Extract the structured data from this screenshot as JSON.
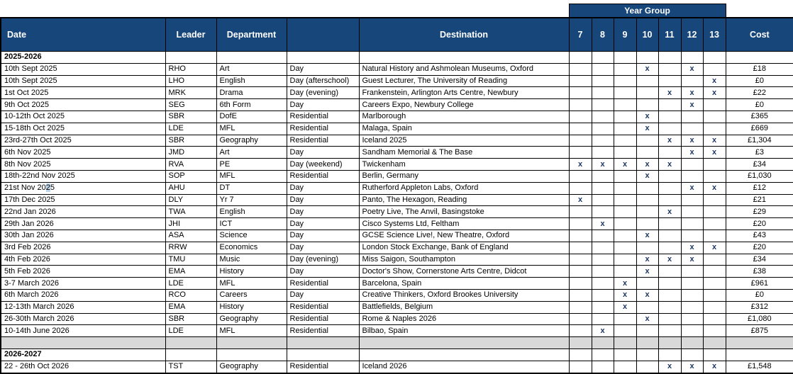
{
  "colors": {
    "header_bg": "#17467A",
    "header_text": "#FFFFFF",
    "mark_color": "#1F3864",
    "separator_bg": "#D9D9D9",
    "highlight_bg": "#BDD7EE"
  },
  "table": {
    "year_group_label": "Year Group",
    "mark_glyph": "x",
    "columns": {
      "date": "Date",
      "leader": "Leader",
      "department": "Department",
      "type": "",
      "destination": "Destination",
      "cost": "Cost"
    },
    "year_columns": [
      "7",
      "8",
      "9",
      "10",
      "11",
      "12",
      "13"
    ],
    "sections": [
      {
        "label": "2025-2026",
        "rows": [
          {
            "date": "10th Sept 2025",
            "leader": "RHO",
            "department": "Art",
            "type": "Day",
            "destination": "Natural History and Ashmolean Museums, Oxford",
            "years": [
              "10",
              "12"
            ],
            "cost": "£18"
          },
          {
            "date": "10th Sept 2025",
            "leader": "LHO",
            "department": "English",
            "type": "Day (afterschool)",
            "destination": "Guest Lecturer, The University of Reading",
            "years": [
              "13"
            ],
            "cost": "£0"
          },
          {
            "date": "1st Oct 2025",
            "leader": "MRK",
            "department": "Drama",
            "type": "Day (evening)",
            "destination": "Frankenstein, Arlington Arts Centre, Newbury",
            "years": [
              "11",
              "12",
              "13"
            ],
            "cost": "£22"
          },
          {
            "date": "9th Oct 2025",
            "leader": "SEG",
            "department": "6th Form",
            "type": "Day",
            "destination": "Careers Expo, Newbury College",
            "years": [
              "12"
            ],
            "cost": "£0"
          },
          {
            "date": "10-12th Oct 2025",
            "leader": "SBR",
            "department": "DofE",
            "type": "Residential",
            "destination": "Marlborough",
            "years": [
              "10"
            ],
            "cost": "£365"
          },
          {
            "date": "15-18th Oct 2025",
            "leader": "LDE",
            "department": "MFL",
            "type": "Residential",
            "destination": "Malaga, Spain",
            "years": [
              "10"
            ],
            "cost": "£669"
          },
          {
            "date": "23rd-27th Oct 2025",
            "leader": "SBR",
            "department": "Geography",
            "type": "Residential",
            "destination": "Iceland 2025",
            "years": [
              "11",
              "12",
              "13"
            ],
            "cost": "£1,304"
          },
          {
            "date": "6th Nov 2025",
            "leader": "JMD",
            "department": "Art",
            "type": "Day",
            "destination": "Sandham Memorial & The Base",
            "years": [
              "12",
              "13"
            ],
            "cost": "£3"
          },
          {
            "date": "8th Nov 2025",
            "leader": "RVA",
            "department": "PE",
            "type": "Day (weekend)",
            "destination": "Twickenham",
            "years": [
              "7",
              "8",
              "9",
              "10",
              "11"
            ],
            "cost": "£34"
          },
          {
            "date": "18th-22nd Nov 2025",
            "leader": "SOP",
            "department": "MFL",
            "type": "Residential",
            "destination": "Berlin, Germany",
            "years": [
              "10"
            ],
            "cost": "£1,030"
          },
          {
            "date": "21st Nov 2025",
            "date_parts": [
              "21st Nov 20",
              "2",
              "5"
            ],
            "leader": "AHU",
            "department": "DT",
            "type": "Day",
            "destination": "Rutherford Appleton Labs, Oxford",
            "years": [
              "12",
              "13"
            ],
            "cost": "£12"
          },
          {
            "date": "17th Dec 2025",
            "leader": "DLY",
            "department": "Yr 7",
            "type": "Day",
            "destination": "Panto, The Hexagon, Reading",
            "years": [
              "7"
            ],
            "cost": "£21"
          },
          {
            "date": "22nd Jan 2026",
            "leader": "TWA",
            "department": "English",
            "type": "Day",
            "destination": "Poetry Live, The Anvil, Basingstoke",
            "years": [
              "11"
            ],
            "cost": "£29"
          },
          {
            "date": "29th Jan 2026",
            "leader": "JHI",
            "department": "ICT",
            "type": "Day",
            "destination": "Cisco Systems Ltd, Feltham",
            "years": [
              "8"
            ],
            "cost": "£20"
          },
          {
            "date": "30th Jan 2026",
            "leader": "ASA",
            "department": "Science",
            "type": "Day",
            "destination": "GCSE Science Live!, New Theatre, Oxford",
            "years": [
              "10"
            ],
            "cost": "£43"
          },
          {
            "date": "3rd Feb 2026",
            "leader": "RRW",
            "department": "Economics",
            "type": "Day",
            "destination": "London Stock Exchange, Bank of England",
            "years": [
              "12",
              "13"
            ],
            "cost": "£20"
          },
          {
            "date": "4th Feb 2026",
            "leader": "TMU",
            "department": "Music",
            "type": "Day (evening)",
            "destination": "Miss Saigon, Southampton",
            "years": [
              "10",
              "11",
              "12"
            ],
            "cost": "£34"
          },
          {
            "date": "5th Feb 2026",
            "leader": "EMA",
            "department": "History",
            "type": "Day",
            "destination": "Doctor's Show, Cornerstone Arts Centre, Didcot",
            "years": [
              "10"
            ],
            "cost": "£38"
          },
          {
            "date": "3-7 March 2026",
            "leader": "LDE",
            "department": "MFL",
            "type": "Residential",
            "destination": "Barcelona, Spain",
            "years": [
              "9"
            ],
            "cost": "£961"
          },
          {
            "date": "6th March 2026",
            "leader": "RCO",
            "department": "Careers",
            "type": "Day",
            "destination": "Creative Thinkers, Oxford Brookes University",
            "years": [
              "9",
              "10"
            ],
            "cost": "£0"
          },
          {
            "date": "12-13th March 2026",
            "leader": "EMA",
            "department": "History",
            "type": "Residential",
            "destination": "Battlefields, Belgium",
            "years": [
              "9"
            ],
            "cost": "£312"
          },
          {
            "date": "26-30th March 2026",
            "leader": "SBR",
            "department": "Geography",
            "type": "Residential",
            "destination": "Rome & Naples 2026",
            "years": [
              "10"
            ],
            "cost": "£1,080"
          },
          {
            "date": "10-14th June 2026",
            "leader": "LDE",
            "department": "MFL",
            "type": "Residential",
            "destination": "Bilbao, Spain",
            "years": [
              "8"
            ],
            "cost": "£875"
          }
        ]
      },
      {
        "label": "2026-2027",
        "rows": [
          {
            "date": "22 - 26th Oct 2026",
            "leader": "TST",
            "department": "Geography",
            "type": "Residential",
            "destination": "Iceland 2026",
            "years": [
              "11",
              "12",
              "13"
            ],
            "cost": "£1,548"
          }
        ]
      }
    ]
  }
}
